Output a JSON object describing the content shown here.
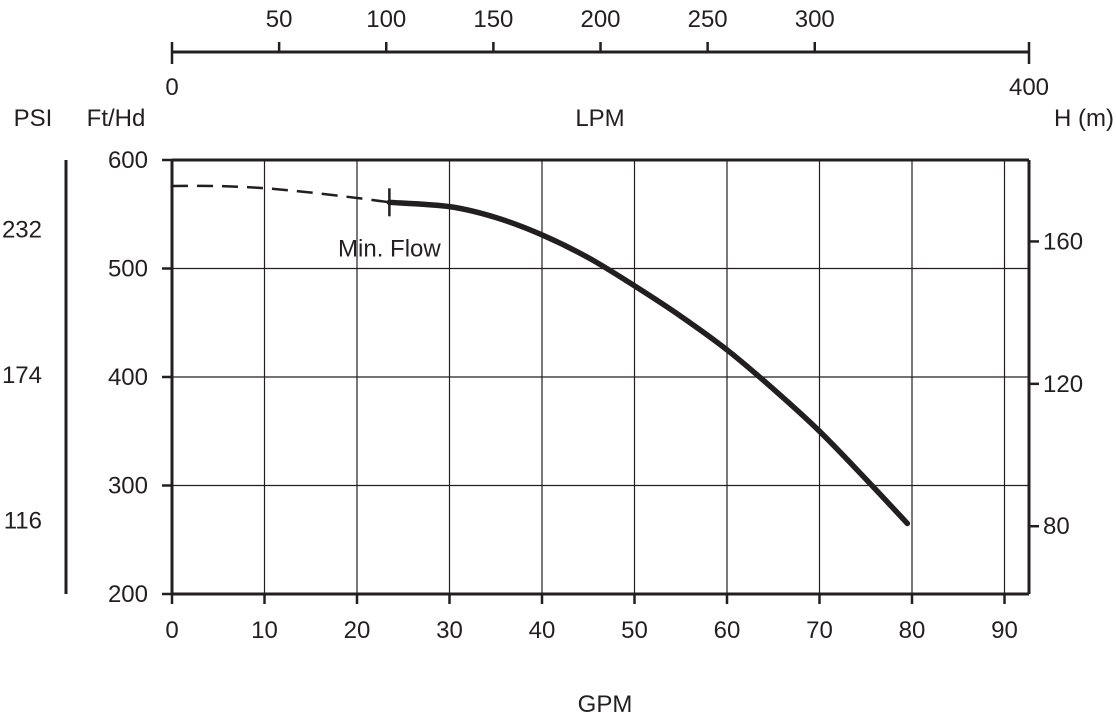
{
  "chart_data": {
    "type": "line",
    "title": "",
    "xlabel": "GPM",
    "ylabel": "Ft/Hd",
    "xlim": [
      0,
      93
    ],
    "ylim": [
      200,
      600
    ],
    "x_ticks": [
      0,
      10,
      20,
      30,
      40,
      50,
      60,
      70,
      80,
      90
    ],
    "y_ticks": [
      200,
      300,
      400,
      500,
      600
    ],
    "grid": true,
    "top_axis": {
      "label": "LPM",
      "range": [
        0,
        400
      ],
      "end_labels": [
        "0",
        "400"
      ],
      "ticks": [
        50,
        100,
        150,
        200,
        250,
        300
      ]
    },
    "right_axis": {
      "label": "H (m)",
      "unit_per_ft": 0.3048,
      "ticks": [
        80,
        120,
        160
      ]
    },
    "left_axis": {
      "label": "PSI",
      "ticks": [
        116,
        174,
        232
      ]
    },
    "series": [
      {
        "style": "dashed",
        "x": [
          0,
          5,
          10,
          15,
          20,
          23.5
        ],
        "y": [
          576,
          576,
          574,
          570,
          565,
          561
        ]
      },
      {
        "style": "solid",
        "x": [
          23.5,
          30,
          35,
          40,
          45,
          50,
          55,
          60,
          65,
          70,
          75,
          79.5
        ],
        "y": [
          561,
          557,
          547,
          531,
          510,
          484,
          456,
          425,
          389,
          350,
          306,
          265
        ]
      }
    ],
    "annotations": [
      {
        "text": "Min. Flow",
        "x": 23.5,
        "y": 561
      }
    ]
  }
}
